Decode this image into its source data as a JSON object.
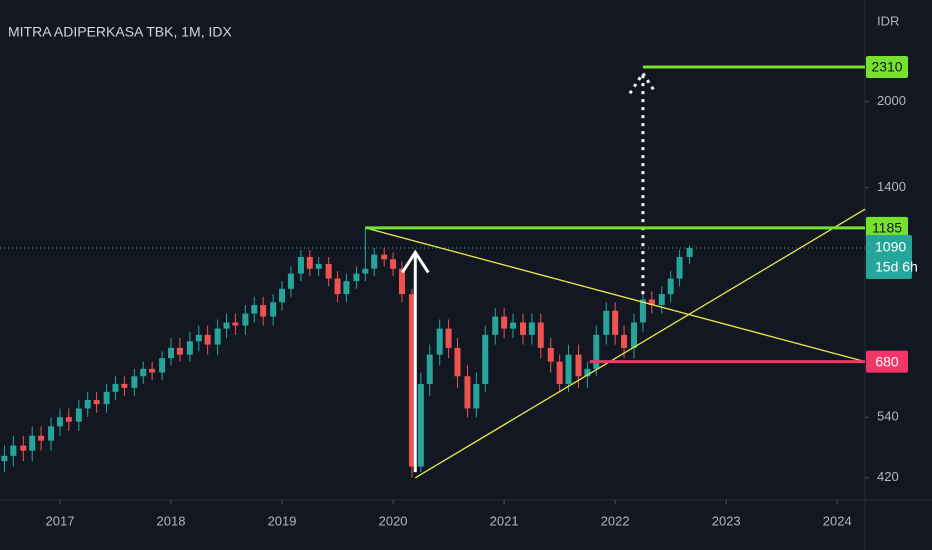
{
  "chart_data": {
    "type": "candlestick",
    "title": "MITRA ADIPERKASA TBK, 1M, IDX",
    "currency_label": "IDR",
    "log_scale": true,
    "up_color": "#26a69a",
    "down_color": "#ef5350",
    "x": [
      2016.5,
      2016.58,
      2016.67,
      2016.75,
      2016.83,
      2016.92,
      2017,
      2017.08,
      2017.17,
      2017.25,
      2017.33,
      2017.42,
      2017.5,
      2017.58,
      2017.67,
      2017.75,
      2017.83,
      2017.92,
      2018,
      2018.08,
      2018.17,
      2018.25,
      2018.33,
      2018.42,
      2018.5,
      2018.58,
      2018.67,
      2018.75,
      2018.83,
      2018.92,
      2019,
      2019.08,
      2019.17,
      2019.25,
      2019.33,
      2019.42,
      2019.5,
      2019.58,
      2019.67,
      2019.75,
      2019.83,
      2019.92,
      2020,
      2020.08,
      2020.17,
      2020.25,
      2020.33,
      2020.42,
      2020.5,
      2020.58,
      2020.67,
      2020.75,
      2020.83,
      2020.92,
      2021,
      2021.08,
      2021.17,
      2021.25,
      2021.33,
      2021.42,
      2021.5,
      2021.58,
      2021.67,
      2021.75,
      2021.83,
      2021.92,
      2022,
      2022.08,
      2022.17,
      2022.25,
      2022.33,
      2022.42,
      2022.5,
      2022.58,
      2022.67
    ],
    "open": [
      450,
      460,
      480,
      470,
      500,
      490,
      520,
      540,
      530,
      560,
      580,
      570,
      600,
      620,
      610,
      640,
      660,
      650,
      690,
      720,
      700,
      740,
      760,
      730,
      780,
      800,
      790,
      830,
      860,
      820,
      870,
      920,
      980,
      1050,
      1000,
      1020,
      960,
      900,
      950,
      980,
      1000,
      1060,
      1040,
      1000,
      900,
      440,
      620,
      700,
      780,
      720,
      640,
      560,
      620,
      760,
      820,
      780,
      800,
      760,
      800,
      720,
      680,
      620,
      700,
      640,
      660,
      760,
      840,
      760,
      720,
      800,
      880,
      860,
      900,
      960,
      1050
    ],
    "high": [
      480,
      500,
      500,
      520,
      520,
      540,
      560,
      560,
      580,
      600,
      600,
      620,
      640,
      640,
      660,
      680,
      680,
      710,
      750,
      750,
      770,
      790,
      790,
      810,
      830,
      830,
      860,
      890,
      890,
      900,
      950,
      1010,
      1080,
      1080,
      1050,
      1050,
      990,
      980,
      1010,
      1185,
      1090,
      1090,
      1070,
      1030,
      920,
      650,
      730,
      810,
      810,
      750,
      670,
      650,
      790,
      850,
      850,
      830,
      830,
      830,
      830,
      750,
      700,
      730,
      730,
      680,
      790,
      870,
      870,
      790,
      830,
      910,
      910,
      930,
      990,
      1080,
      1100
    ],
    "low": [
      430,
      440,
      450,
      450,
      470,
      470,
      500,
      510,
      510,
      540,
      550,
      550,
      580,
      590,
      590,
      620,
      630,
      630,
      670,
      680,
      680,
      710,
      700,
      700,
      750,
      760,
      760,
      800,
      790,
      790,
      840,
      890,
      950,
      970,
      970,
      930,
      870,
      870,
      920,
      950,
      970,
      1010,
      970,
      870,
      420,
      430,
      590,
      670,
      690,
      610,
      540,
      540,
      600,
      730,
      750,
      750,
      730,
      730,
      690,
      650,
      600,
      600,
      610,
      610,
      640,
      730,
      730,
      690,
      690,
      770,
      830,
      830,
      870,
      930,
      1020
    ],
    "close": [
      460,
      480,
      470,
      500,
      490,
      520,
      540,
      530,
      560,
      580,
      570,
      600,
      620,
      610,
      640,
      660,
      650,
      690,
      720,
      700,
      740,
      760,
      730,
      780,
      800,
      790,
      830,
      860,
      820,
      870,
      920,
      980,
      1050,
      1000,
      1020,
      960,
      900,
      950,
      980,
      1000,
      1060,
      1040,
      1000,
      900,
      440,
      620,
      700,
      780,
      720,
      640,
      560,
      620,
      760,
      820,
      780,
      800,
      760,
      800,
      720,
      680,
      620,
      700,
      640,
      660,
      760,
      840,
      760,
      720,
      800,
      880,
      860,
      900,
      960,
      1050,
      1090
    ],
    "xlim": [
      2016.46,
      2024.25
    ],
    "xticks": [
      2017,
      2018,
      2019,
      2020,
      2021,
      2022,
      2023,
      2024
    ],
    "ylim": [
      383,
      3050
    ],
    "yticks": [
      420,
      540,
      1400,
      2000
    ],
    "levels": [
      {
        "value": 2310,
        "x_start": 2022.25,
        "color": "#76e12e"
      },
      {
        "value": 1185,
        "x_start": 2019.75,
        "color": "#76e12e"
      },
      {
        "value": 680,
        "x_start": 2021.77,
        "color": "#f23668"
      }
    ],
    "trendlines": [
      {
        "x": [
          2019.75,
          2024.25
        ],
        "y": [
          1185,
          680
        ],
        "color": "#e8e84a"
      },
      {
        "x": [
          2020.2,
          2024.25
        ],
        "y": [
          420,
          1280
        ],
        "color": "#e8e84a"
      }
    ],
    "arrows": [
      {
        "x": 2020.2,
        "y": [
          430,
          1070
        ],
        "style": "solid",
        "color": "#ffffff"
      },
      {
        "x": 2022.25,
        "y": [
          900,
          2250
        ],
        "style": "dotted",
        "color": "#ffffff"
      }
    ],
    "last_price": {
      "value": 1090,
      "label": "15d 6h",
      "color": "#26a69a"
    }
  }
}
